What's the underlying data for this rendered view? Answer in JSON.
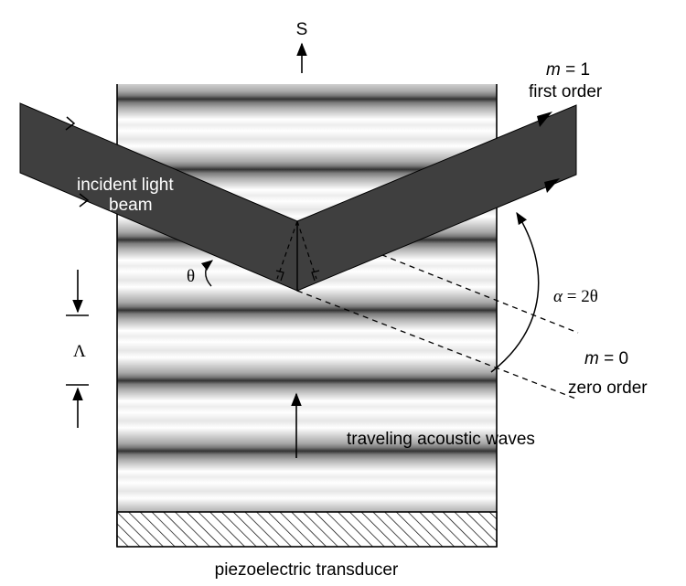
{
  "labels": {
    "s_vector": "S",
    "incident_line1": "incident light",
    "incident_line2": "beam",
    "theta": "θ",
    "lambda": "Λ",
    "m1_var": "m",
    "m1_eq": " = 1",
    "first_order": "first order",
    "alpha_var": "α",
    "alpha_eq": " = 2θ",
    "m0_var": "m",
    "m0_eq": " = 0",
    "zero_order": "zero order",
    "acoustic_waves": "traveling acoustic waves",
    "transducer": "piezoelectric transducer"
  },
  "colors": {
    "beam": "#3f3f3f",
    "outline": "#000000",
    "background": "#ffffff"
  }
}
